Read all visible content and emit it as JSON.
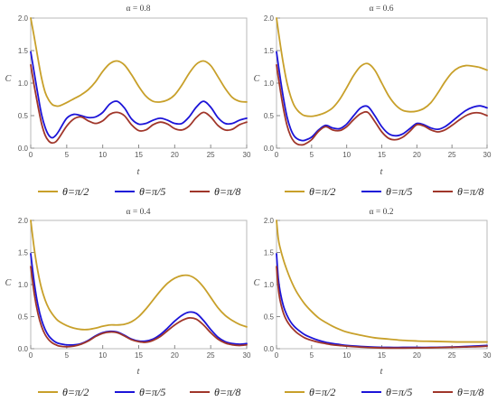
{
  "colors": {
    "s1": "#c8a02a",
    "s2": "#1c14d8",
    "s3": "#a0362a",
    "frame": "#b8b8b8",
    "tick": "#555555"
  },
  "chart_data": [
    {
      "type": "line",
      "title": "α = 0.8",
      "xlabel": "t",
      "ylabel": "C",
      "xlim": [
        0,
        30
      ],
      "ylim": [
        0,
        2.0
      ],
      "xticks": [
        "0",
        "5",
        "10",
        "15",
        "20",
        "25",
        "30"
      ],
      "yticks": [
        "0.0",
        "0.5",
        "1.0",
        "1.5",
        "2.0"
      ],
      "grid": false,
      "legend_position": "bottom",
      "series": [
        {
          "name": "θ=π/2",
          "color": "s1",
          "x": [
            0,
            0.5,
            1,
            1.5,
            2,
            2.5,
            3,
            3.5,
            4,
            5,
            6,
            7,
            8,
            9,
            10,
            11,
            12,
            13,
            14,
            15,
            16,
            17,
            18,
            19,
            20,
            21,
            22,
            23,
            24,
            25,
            26,
            27,
            28,
            29,
            30
          ],
          "y": [
            2.0,
            1.7,
            1.38,
            1.08,
            0.86,
            0.74,
            0.67,
            0.65,
            0.65,
            0.7,
            0.76,
            0.82,
            0.9,
            1.02,
            1.18,
            1.3,
            1.34,
            1.28,
            1.13,
            0.95,
            0.8,
            0.72,
            0.71,
            0.74,
            0.82,
            0.97,
            1.15,
            1.29,
            1.34,
            1.27,
            1.1,
            0.92,
            0.78,
            0.72,
            0.71
          ]
        },
        {
          "name": "θ=π/5",
          "color": "s2",
          "x": [
            0,
            0.5,
            1,
            1.5,
            2,
            2.5,
            3,
            3.5,
            4,
            5,
            6,
            7,
            8,
            9,
            10,
            11,
            12,
            13,
            14,
            15,
            16,
            17,
            18,
            19,
            20,
            21,
            22,
            23,
            24,
            25,
            26,
            27,
            28,
            29,
            30
          ],
          "y": [
            1.48,
            1.15,
            0.82,
            0.52,
            0.32,
            0.2,
            0.16,
            0.2,
            0.28,
            0.46,
            0.52,
            0.5,
            0.47,
            0.48,
            0.55,
            0.68,
            0.72,
            0.62,
            0.45,
            0.37,
            0.38,
            0.43,
            0.46,
            0.43,
            0.38,
            0.38,
            0.48,
            0.63,
            0.72,
            0.63,
            0.47,
            0.38,
            0.38,
            0.43,
            0.46
          ]
        },
        {
          "name": "θ=π/8",
          "color": "s3",
          "x": [
            0,
            0.5,
            1,
            1.5,
            2,
            2.5,
            3,
            3.5,
            4,
            5,
            6,
            7,
            8,
            9,
            10,
            11,
            12,
            13,
            14,
            15,
            16,
            17,
            18,
            19,
            20,
            21,
            22,
            23,
            24,
            25,
            26,
            27,
            28,
            29,
            30
          ],
          "y": [
            1.28,
            0.95,
            0.65,
            0.38,
            0.2,
            0.11,
            0.08,
            0.1,
            0.17,
            0.34,
            0.45,
            0.48,
            0.42,
            0.38,
            0.42,
            0.52,
            0.55,
            0.5,
            0.36,
            0.27,
            0.28,
            0.36,
            0.4,
            0.37,
            0.3,
            0.28,
            0.34,
            0.47,
            0.55,
            0.48,
            0.35,
            0.28,
            0.29,
            0.36,
            0.4
          ]
        }
      ]
    },
    {
      "type": "line",
      "title": "α = 0.6",
      "xlabel": "t",
      "ylabel": "C",
      "xlim": [
        0,
        30
      ],
      "ylim": [
        0,
        2.0
      ],
      "xticks": [
        "0",
        "5",
        "10",
        "15",
        "20",
        "25",
        "30"
      ],
      "yticks": [
        "0.0",
        "0.5",
        "1.0",
        "1.5",
        "2.0"
      ],
      "grid": false,
      "legend_position": "bottom",
      "series": [
        {
          "name": "θ=π/2",
          "color": "s1",
          "x": [
            0,
            0.5,
            1,
            1.5,
            2,
            2.5,
            3,
            3.5,
            4,
            5,
            6,
            7,
            8,
            9,
            10,
            11,
            12,
            13,
            14,
            15,
            16,
            17,
            18,
            19,
            20,
            21,
            22,
            23,
            24,
            25,
            26,
            27,
            28,
            29,
            30
          ],
          "y": [
            2.0,
            1.62,
            1.28,
            1.0,
            0.8,
            0.66,
            0.58,
            0.53,
            0.5,
            0.49,
            0.51,
            0.55,
            0.62,
            0.75,
            0.93,
            1.12,
            1.26,
            1.3,
            1.2,
            1.0,
            0.8,
            0.66,
            0.58,
            0.56,
            0.57,
            0.61,
            0.7,
            0.85,
            1.02,
            1.16,
            1.24,
            1.27,
            1.26,
            1.24,
            1.2
          ]
        },
        {
          "name": "θ=π/5",
          "color": "s2",
          "x": [
            0,
            0.5,
            1,
            1.5,
            2,
            2.5,
            3,
            3.5,
            4,
            5,
            6,
            7,
            8,
            9,
            10,
            11,
            12,
            13,
            14,
            15,
            16,
            17,
            18,
            19,
            20,
            21,
            22,
            23,
            24,
            25,
            26,
            27,
            28,
            29,
            30
          ],
          "y": [
            1.48,
            1.1,
            0.76,
            0.48,
            0.3,
            0.19,
            0.14,
            0.12,
            0.12,
            0.17,
            0.28,
            0.35,
            0.31,
            0.3,
            0.37,
            0.5,
            0.62,
            0.64,
            0.5,
            0.33,
            0.22,
            0.19,
            0.22,
            0.3,
            0.38,
            0.36,
            0.31,
            0.29,
            0.33,
            0.41,
            0.5,
            0.58,
            0.63,
            0.65,
            0.62
          ]
        },
        {
          "name": "θ=π/8",
          "color": "s3",
          "x": [
            0,
            0.5,
            1,
            1.5,
            2,
            2.5,
            3,
            3.5,
            4,
            5,
            6,
            7,
            8,
            9,
            10,
            11,
            12,
            13,
            14,
            15,
            16,
            17,
            18,
            19,
            20,
            21,
            22,
            23,
            24,
            25,
            26,
            27,
            28,
            29,
            30
          ],
          "y": [
            1.28,
            0.92,
            0.6,
            0.35,
            0.19,
            0.1,
            0.06,
            0.05,
            0.06,
            0.13,
            0.26,
            0.33,
            0.28,
            0.27,
            0.33,
            0.44,
            0.53,
            0.55,
            0.41,
            0.25,
            0.15,
            0.13,
            0.17,
            0.26,
            0.36,
            0.34,
            0.28,
            0.25,
            0.28,
            0.35,
            0.43,
            0.5,
            0.54,
            0.54,
            0.5
          ]
        }
      ]
    },
    {
      "type": "line",
      "title": "α = 0.4",
      "xlabel": "t",
      "ylabel": "C",
      "xlim": [
        0,
        30
      ],
      "ylim": [
        0,
        2.0
      ],
      "xticks": [
        "0",
        "5",
        "10",
        "15",
        "20",
        "25",
        "30"
      ],
      "yticks": [
        "0.0",
        "0.5",
        "1.0",
        "1.5",
        "2.0"
      ],
      "grid": false,
      "legend_position": "bottom",
      "series": [
        {
          "name": "θ=π/2",
          "color": "s1",
          "x": [
            0,
            0.5,
            1,
            1.5,
            2,
            2.5,
            3,
            3.5,
            4,
            5,
            6,
            7,
            8,
            9,
            10,
            11,
            12,
            13,
            14,
            15,
            16,
            17,
            18,
            19,
            20,
            21,
            22,
            23,
            24,
            25,
            26,
            27,
            28,
            29,
            30
          ],
          "y": [
            2.0,
            1.55,
            1.2,
            0.94,
            0.76,
            0.63,
            0.54,
            0.47,
            0.42,
            0.36,
            0.32,
            0.3,
            0.3,
            0.32,
            0.35,
            0.37,
            0.37,
            0.38,
            0.42,
            0.5,
            0.62,
            0.76,
            0.9,
            1.02,
            1.1,
            1.14,
            1.14,
            1.08,
            0.96,
            0.8,
            0.64,
            0.52,
            0.44,
            0.38,
            0.34
          ]
        },
        {
          "name": "θ=π/5",
          "color": "s2",
          "x": [
            0,
            0.5,
            1,
            1.5,
            2,
            2.5,
            3,
            3.5,
            4,
            5,
            6,
            7,
            8,
            9,
            10,
            11,
            12,
            13,
            14,
            15,
            16,
            17,
            18,
            19,
            20,
            21,
            22,
            23,
            24,
            25,
            26,
            27,
            28,
            29,
            30
          ],
          "y": [
            1.48,
            1.02,
            0.68,
            0.45,
            0.3,
            0.2,
            0.14,
            0.1,
            0.08,
            0.06,
            0.06,
            0.08,
            0.13,
            0.2,
            0.25,
            0.27,
            0.26,
            0.21,
            0.15,
            0.12,
            0.12,
            0.15,
            0.22,
            0.32,
            0.43,
            0.52,
            0.57,
            0.55,
            0.44,
            0.3,
            0.18,
            0.11,
            0.08,
            0.07,
            0.08
          ]
        },
        {
          "name": "θ=π/8",
          "color": "s3",
          "x": [
            0,
            0.5,
            1,
            1.5,
            2,
            2.5,
            3,
            3.5,
            4,
            5,
            6,
            7,
            8,
            9,
            10,
            11,
            12,
            13,
            14,
            15,
            16,
            17,
            18,
            19,
            20,
            21,
            22,
            23,
            24,
            25,
            26,
            27,
            28,
            29,
            30
          ],
          "y": [
            1.28,
            0.85,
            0.55,
            0.35,
            0.22,
            0.14,
            0.09,
            0.06,
            0.04,
            0.03,
            0.04,
            0.07,
            0.12,
            0.19,
            0.24,
            0.26,
            0.25,
            0.2,
            0.14,
            0.11,
            0.1,
            0.13,
            0.19,
            0.28,
            0.37,
            0.44,
            0.48,
            0.46,
            0.37,
            0.25,
            0.15,
            0.09,
            0.06,
            0.05,
            0.06
          ]
        }
      ]
    },
    {
      "type": "line",
      "title": "α = 0.2",
      "xlabel": "t",
      "ylabel": "C",
      "xlim": [
        0,
        30
      ],
      "ylim": [
        0,
        2.0
      ],
      "xticks": [
        "0",
        "5",
        "10",
        "15",
        "20",
        "25",
        "30"
      ],
      "yticks": [
        "0.0",
        "0.5",
        "1.0",
        "1.5",
        "2.0"
      ],
      "grid": false,
      "legend_position": "bottom",
      "series": [
        {
          "name": "θ=π/2",
          "color": "s1",
          "x": [
            0,
            0.25,
            0.5,
            1,
            1.5,
            2,
            2.5,
            3,
            4,
            5,
            6,
            7,
            8,
            9,
            10,
            12,
            14,
            16,
            18,
            20,
            22,
            24,
            26,
            28,
            30
          ],
          "y": [
            2.0,
            1.72,
            1.58,
            1.38,
            1.22,
            1.08,
            0.96,
            0.86,
            0.7,
            0.58,
            0.48,
            0.41,
            0.35,
            0.3,
            0.26,
            0.21,
            0.17,
            0.15,
            0.13,
            0.12,
            0.115,
            0.11,
            0.105,
            0.105,
            0.105
          ]
        },
        {
          "name": "θ=π/5",
          "color": "s2",
          "x": [
            0,
            0.25,
            0.5,
            1,
            1.5,
            2,
            2.5,
            3,
            4,
            5,
            6,
            7,
            8,
            9,
            10,
            12,
            14,
            16,
            18,
            20,
            22,
            24,
            26,
            28,
            30
          ],
          "y": [
            1.48,
            1.1,
            0.9,
            0.66,
            0.52,
            0.42,
            0.35,
            0.3,
            0.22,
            0.17,
            0.13,
            0.1,
            0.08,
            0.065,
            0.05,
            0.035,
            0.025,
            0.02,
            0.02,
            0.02,
            0.02,
            0.025,
            0.03,
            0.04,
            0.05
          ]
        },
        {
          "name": "θ=π/8",
          "color": "s3",
          "x": [
            0,
            0.25,
            0.5,
            1,
            1.5,
            2,
            2.5,
            3,
            4,
            5,
            6,
            7,
            8,
            9,
            10,
            12,
            14,
            16,
            18,
            20,
            22,
            24,
            26,
            28,
            30
          ],
          "y": [
            1.28,
            0.95,
            0.76,
            0.55,
            0.43,
            0.35,
            0.29,
            0.24,
            0.17,
            0.13,
            0.1,
            0.08,
            0.06,
            0.05,
            0.04,
            0.025,
            0.015,
            0.01,
            0.01,
            0.012,
            0.015,
            0.02,
            0.025,
            0.03,
            0.04
          ]
        }
      ]
    }
  ]
}
